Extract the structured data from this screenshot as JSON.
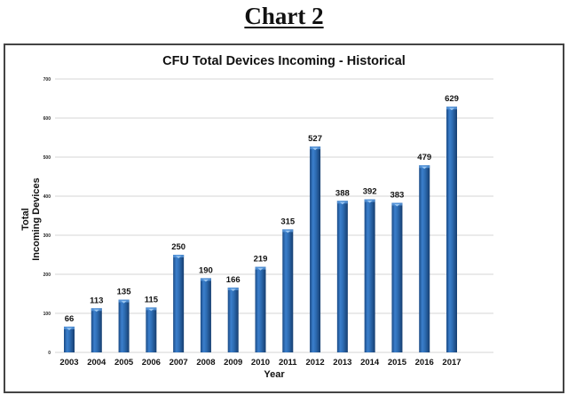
{
  "page": {
    "heading": "Chart 2"
  },
  "chart_data": {
    "type": "bar",
    "title": "CFU Total Devices Incoming - Historical",
    "xlabel": "Year",
    "ylabel_lines": [
      "Total",
      "Incoming Devices"
    ],
    "ylabel": "Total Incoming Devices",
    "categories": [
      "2003",
      "2004",
      "2005",
      "2006",
      "2007",
      "2008",
      "2009",
      "2010",
      "2011",
      "2012",
      "2013",
      "2014",
      "2015",
      "2016",
      "2017"
    ],
    "values": [
      66,
      113,
      135,
      115,
      250,
      190,
      166,
      219,
      315,
      527,
      388,
      392,
      383,
      479,
      629
    ],
    "ylim": [
      0,
      700
    ],
    "yticks": [
      0,
      100,
      200,
      300,
      400,
      500,
      600,
      700
    ],
    "grid": true,
    "legend": "none",
    "data_labels": true,
    "colors": {
      "bar": "#2e6db4",
      "bar_dark": "#1a4a85",
      "bar_light": "#5b9be0",
      "grid": "#dddddd"
    }
  }
}
